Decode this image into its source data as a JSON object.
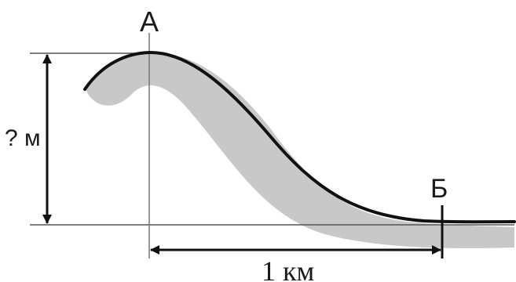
{
  "labels": {
    "point_a": "А",
    "point_b": "Б",
    "height": "? м",
    "distance": "1 км"
  },
  "colors": {
    "profile_line": "#111111",
    "shadow": "#c8c8c8",
    "guides": "#555555",
    "arrows": "#111111",
    "text": "#1a1a1a"
  }
}
